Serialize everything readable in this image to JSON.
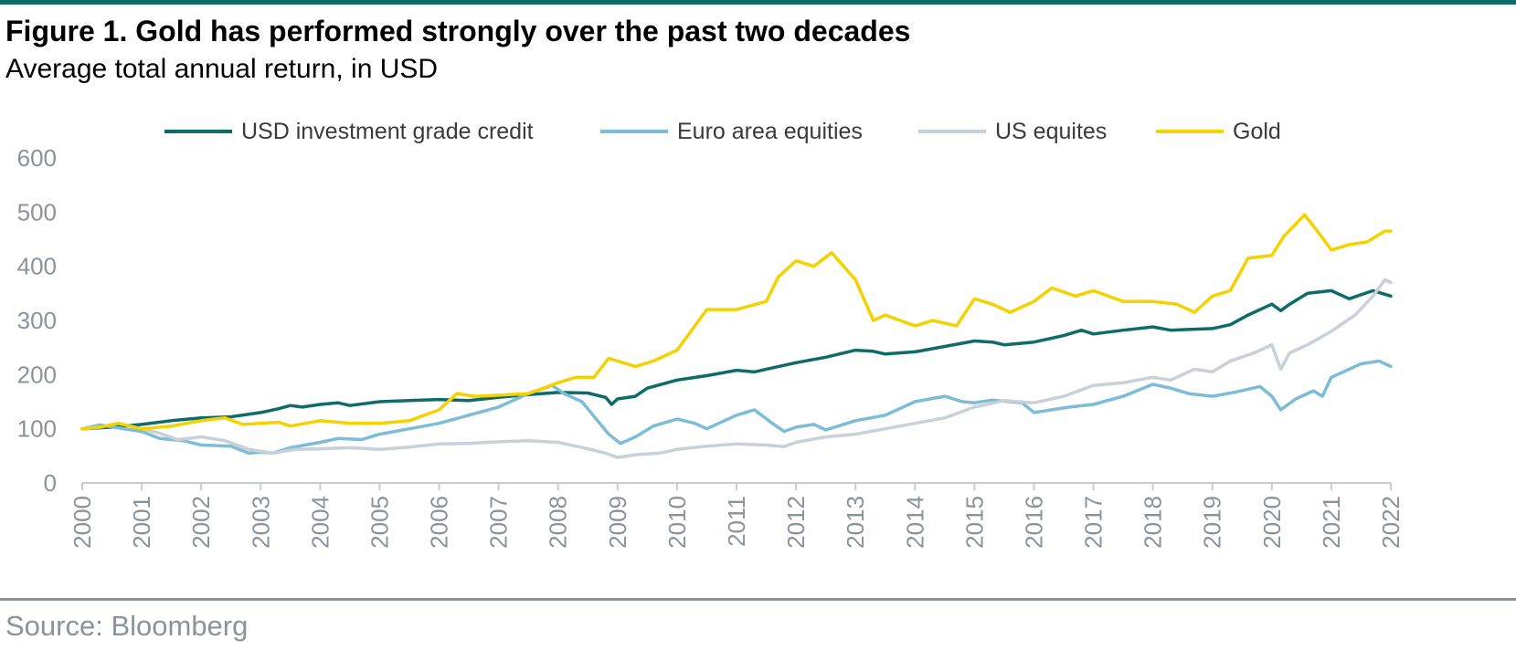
{
  "title": "Figure 1. Gold has performed strongly over the past two decades",
  "subtitle": "Average total annual return, in USD",
  "source": "Source: Bloomberg",
  "chart_data": {
    "type": "line",
    "ylim": [
      0,
      600
    ],
    "yticks": [
      0,
      100,
      200,
      300,
      400,
      500,
      600
    ],
    "xlim": [
      2000,
      2022
    ],
    "xticks": [
      "2000",
      "2001",
      "2002",
      "2003",
      "2004",
      "2005",
      "2006",
      "2007",
      "2008",
      "2009",
      "2010",
      "2011",
      "2012",
      "2013",
      "2014",
      "2015",
      "2016",
      "2017",
      "2018",
      "2019",
      "2020",
      "2021",
      "2022"
    ],
    "grid": false,
    "legend_position": "top",
    "series": [
      {
        "name": "USD investment grade credit",
        "color": "#0e6b68",
        "points": [
          [
            2000.0,
            100
          ],
          [
            2000.5,
            103
          ],
          [
            2001.0,
            108
          ],
          [
            2001.5,
            115
          ],
          [
            2002.0,
            120
          ],
          [
            2002.5,
            122
          ],
          [
            2003.0,
            130
          ],
          [
            2003.3,
            137
          ],
          [
            2003.5,
            143
          ],
          [
            2003.7,
            140
          ],
          [
            2004.0,
            145
          ],
          [
            2004.3,
            148
          ],
          [
            2004.5,
            143
          ],
          [
            2005.0,
            150
          ],
          [
            2005.5,
            152
          ],
          [
            2006.0,
            154
          ],
          [
            2006.5,
            152
          ],
          [
            2007.0,
            158
          ],
          [
            2007.5,
            163
          ],
          [
            2008.0,
            167
          ],
          [
            2008.5,
            166
          ],
          [
            2008.8,
            158
          ],
          [
            2008.9,
            145
          ],
          [
            2009.0,
            155
          ],
          [
            2009.3,
            160
          ],
          [
            2009.5,
            175
          ],
          [
            2010.0,
            190
          ],
          [
            2010.5,
            198
          ],
          [
            2011.0,
            208
          ],
          [
            2011.3,
            205
          ],
          [
            2011.5,
            210
          ],
          [
            2012.0,
            222
          ],
          [
            2012.5,
            232
          ],
          [
            2013.0,
            245
          ],
          [
            2013.3,
            243
          ],
          [
            2013.5,
            238
          ],
          [
            2014.0,
            242
          ],
          [
            2014.5,
            252
          ],
          [
            2015.0,
            262
          ],
          [
            2015.3,
            260
          ],
          [
            2015.5,
            255
          ],
          [
            2016.0,
            260
          ],
          [
            2016.5,
            272
          ],
          [
            2016.8,
            282
          ],
          [
            2017.0,
            275
          ],
          [
            2017.5,
            282
          ],
          [
            2018.0,
            288
          ],
          [
            2018.3,
            282
          ],
          [
            2018.5,
            283
          ],
          [
            2019.0,
            285
          ],
          [
            2019.3,
            292
          ],
          [
            2019.6,
            310
          ],
          [
            2020.0,
            330
          ],
          [
            2020.15,
            318
          ],
          [
            2020.3,
            330
          ],
          [
            2020.6,
            350
          ],
          [
            2021.0,
            355
          ],
          [
            2021.3,
            340
          ],
          [
            2021.7,
            355
          ],
          [
            2022.0,
            345
          ]
        ]
      },
      {
        "name": "Euro area equities",
        "color": "#7dbcd8",
        "points": [
          [
            2000.0,
            100
          ],
          [
            2000.3,
            107
          ],
          [
            2000.7,
            100
          ],
          [
            2001.0,
            95
          ],
          [
            2001.3,
            82
          ],
          [
            2001.7,
            78
          ],
          [
            2002.0,
            70
          ],
          [
            2002.5,
            68
          ],
          [
            2002.8,
            55
          ],
          [
            2003.0,
            57
          ],
          [
            2003.2,
            55
          ],
          [
            2003.5,
            65
          ],
          [
            2004.0,
            75
          ],
          [
            2004.3,
            82
          ],
          [
            2004.7,
            80
          ],
          [
            2005.0,
            90
          ],
          [
            2005.5,
            100
          ],
          [
            2006.0,
            110
          ],
          [
            2006.5,
            125
          ],
          [
            2007.0,
            140
          ],
          [
            2007.5,
            165
          ],
          [
            2007.9,
            180
          ],
          [
            2008.1,
            165
          ],
          [
            2008.4,
            150
          ],
          [
            2008.7,
            110
          ],
          [
            2008.85,
            90
          ],
          [
            2009.05,
            73
          ],
          [
            2009.3,
            85
          ],
          [
            2009.6,
            105
          ],
          [
            2010.0,
            118
          ],
          [
            2010.3,
            110
          ],
          [
            2010.5,
            100
          ],
          [
            2011.0,
            125
          ],
          [
            2011.3,
            135
          ],
          [
            2011.6,
            110
          ],
          [
            2011.8,
            95
          ],
          [
            2012.0,
            103
          ],
          [
            2012.3,
            108
          ],
          [
            2012.5,
            98
          ],
          [
            2013.0,
            115
          ],
          [
            2013.5,
            125
          ],
          [
            2014.0,
            150
          ],
          [
            2014.5,
            160
          ],
          [
            2014.8,
            150
          ],
          [
            2015.0,
            148
          ],
          [
            2015.3,
            153
          ],
          [
            2015.8,
            148
          ],
          [
            2016.0,
            130
          ],
          [
            2016.3,
            135
          ],
          [
            2016.6,
            140
          ],
          [
            2017.0,
            145
          ],
          [
            2017.5,
            160
          ],
          [
            2018.0,
            182
          ],
          [
            2018.3,
            175
          ],
          [
            2018.6,
            165
          ],
          [
            2019.0,
            160
          ],
          [
            2019.4,
            168
          ],
          [
            2019.8,
            178
          ],
          [
            2020.0,
            160
          ],
          [
            2020.15,
            135
          ],
          [
            2020.4,
            155
          ],
          [
            2020.7,
            170
          ],
          [
            2020.85,
            160
          ],
          [
            2021.0,
            195
          ],
          [
            2021.5,
            220
          ],
          [
            2021.8,
            225
          ],
          [
            2022.0,
            215
          ]
        ]
      },
      {
        "name": "US equites",
        "color": "#c8d0d8",
        "points": [
          [
            2000.0,
            100
          ],
          [
            2000.3,
            103
          ],
          [
            2000.6,
            110
          ],
          [
            2001.0,
            100
          ],
          [
            2001.3,
            92
          ],
          [
            2001.6,
            80
          ],
          [
            2002.0,
            85
          ],
          [
            2002.4,
            78
          ],
          [
            2002.8,
            62
          ],
          [
            2003.2,
            55
          ],
          [
            2003.6,
            62
          ],
          [
            2004.0,
            63
          ],
          [
            2004.5,
            65
          ],
          [
            2005.0,
            62
          ],
          [
            2005.5,
            66
          ],
          [
            2006.0,
            72
          ],
          [
            2006.5,
            73
          ],
          [
            2007.0,
            76
          ],
          [
            2007.5,
            78
          ],
          [
            2008.0,
            75
          ],
          [
            2008.5,
            63
          ],
          [
            2008.8,
            55
          ],
          [
            2009.0,
            47
          ],
          [
            2009.3,
            52
          ],
          [
            2009.7,
            55
          ],
          [
            2010.0,
            62
          ],
          [
            2010.5,
            68
          ],
          [
            2011.0,
            72
          ],
          [
            2011.5,
            70
          ],
          [
            2011.8,
            67
          ],
          [
            2012.0,
            75
          ],
          [
            2012.5,
            85
          ],
          [
            2013.0,
            90
          ],
          [
            2013.5,
            100
          ],
          [
            2014.0,
            110
          ],
          [
            2014.5,
            120
          ],
          [
            2015.0,
            140
          ],
          [
            2015.5,
            152
          ],
          [
            2016.0,
            148
          ],
          [
            2016.5,
            160
          ],
          [
            2017.0,
            180
          ],
          [
            2017.5,
            185
          ],
          [
            2018.0,
            195
          ],
          [
            2018.3,
            190
          ],
          [
            2018.7,
            210
          ],
          [
            2019.0,
            205
          ],
          [
            2019.3,
            225
          ],
          [
            2019.7,
            240
          ],
          [
            2020.0,
            255
          ],
          [
            2020.15,
            210
          ],
          [
            2020.3,
            240
          ],
          [
            2020.6,
            255
          ],
          [
            2021.0,
            280
          ],
          [
            2021.4,
            310
          ],
          [
            2021.7,
            345
          ],
          [
            2021.9,
            375
          ],
          [
            2022.0,
            370
          ]
        ]
      },
      {
        "name": "Gold",
        "color": "#f4d200",
        "points": [
          [
            2000.0,
            100
          ],
          [
            2000.3,
            103
          ],
          [
            2000.6,
            110
          ],
          [
            2001.0,
            100
          ],
          [
            2001.5,
            105
          ],
          [
            2002.0,
            115
          ],
          [
            2002.4,
            120
          ],
          [
            2002.7,
            108
          ],
          [
            2003.0,
            110
          ],
          [
            2003.3,
            112
          ],
          [
            2003.5,
            105
          ],
          [
            2004.0,
            115
          ],
          [
            2004.5,
            110
          ],
          [
            2005.0,
            110
          ],
          [
            2005.5,
            115
          ],
          [
            2006.0,
            135
          ],
          [
            2006.3,
            165
          ],
          [
            2006.6,
            160
          ],
          [
            2007.0,
            162
          ],
          [
            2007.5,
            165
          ],
          [
            2008.0,
            185
          ],
          [
            2008.3,
            195
          ],
          [
            2008.6,
            195
          ],
          [
            2008.85,
            230
          ],
          [
            2009.0,
            225
          ],
          [
            2009.3,
            215
          ],
          [
            2009.6,
            225
          ],
          [
            2010.0,
            245
          ],
          [
            2010.3,
            290
          ],
          [
            2010.5,
            320
          ],
          [
            2011.0,
            320
          ],
          [
            2011.5,
            335
          ],
          [
            2011.7,
            380
          ],
          [
            2012.0,
            410
          ],
          [
            2012.3,
            400
          ],
          [
            2012.6,
            425
          ],
          [
            2013.0,
            375
          ],
          [
            2013.3,
            300
          ],
          [
            2013.5,
            310
          ],
          [
            2014.0,
            290
          ],
          [
            2014.3,
            300
          ],
          [
            2014.7,
            290
          ],
          [
            2015.0,
            340
          ],
          [
            2015.3,
            330
          ],
          [
            2015.6,
            315
          ],
          [
            2016.0,
            335
          ],
          [
            2016.3,
            360
          ],
          [
            2016.7,
            345
          ],
          [
            2017.0,
            355
          ],
          [
            2017.5,
            335
          ],
          [
            2018.0,
            335
          ],
          [
            2018.4,
            330
          ],
          [
            2018.7,
            315
          ],
          [
            2019.0,
            345
          ],
          [
            2019.3,
            355
          ],
          [
            2019.6,
            415
          ],
          [
            2020.0,
            420
          ],
          [
            2020.2,
            455
          ],
          [
            2020.55,
            495
          ],
          [
            2020.8,
            460
          ],
          [
            2021.0,
            430
          ],
          [
            2021.3,
            440
          ],
          [
            2021.6,
            445
          ],
          [
            2021.9,
            465
          ],
          [
            2022.0,
            465
          ]
        ]
      }
    ]
  }
}
